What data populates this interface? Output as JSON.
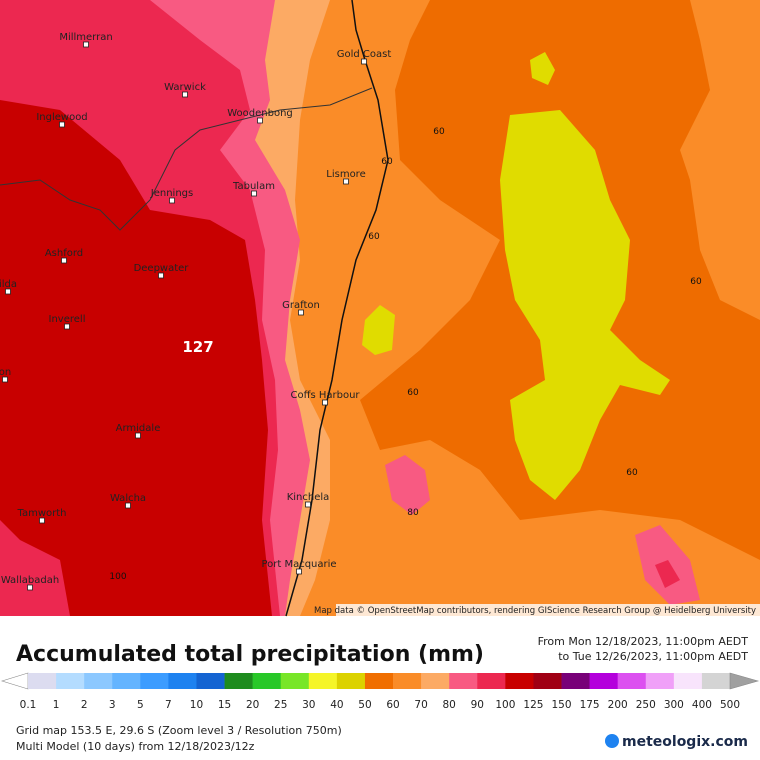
{
  "map": {
    "places": [
      "Millmerran",
      "Warwick",
      "Inglewood",
      "Woodenbong",
      "Jennings",
      "Tabulam",
      "Ashford",
      "Deepwater",
      "ilda",
      "Inverell",
      "on",
      "Armidale",
      "Walcha",
      "Tamworth",
      "Wallabadah",
      "Gold Coast",
      "Lismore",
      "Grafton",
      "Coffs Harbour",
      "Kinchela",
      "Port Macquarie"
    ],
    "contour_labels": [
      "60",
      "60",
      "60",
      "60",
      "60",
      "60",
      "80",
      "100"
    ],
    "max_label": "127",
    "attribution": "Map data © OpenStreetMap contributors, rendering GIScience Research Group @ Heidelberg University"
  },
  "header": {
    "title": "Accumulated total precipitation (mm)",
    "from": "From Mon 12/18/2023, 11:00pm AEDT",
    "to": "to Tue 12/26/2023, 11:00pm AEDT"
  },
  "legend": {
    "labels": [
      0.1,
      1,
      2,
      3,
      5,
      7,
      10,
      15,
      20,
      25,
      30,
      40,
      50,
      60,
      70,
      80,
      90,
      100,
      125,
      150,
      175,
      200,
      250,
      300,
      400,
      500
    ],
    "colors": [
      "#ffffff",
      "#dcdcf0",
      "#b4dcff",
      "#8cc8ff",
      "#64b4ff",
      "#3c9cff",
      "#1e82f0",
      "#1464d2",
      "#1e8c1e",
      "#28c828",
      "#78e628",
      "#f5f528",
      "#dcd200",
      "#f06e00",
      "#fa8c28",
      "#fcaa64",
      "#f85a82",
      "#ec2850",
      "#c80000",
      "#a00014",
      "#780078",
      "#b400dc",
      "#dc50f0",
      "#f0a0f8",
      "#f8e4fc",
      "#d4d4d4",
      "#a0a0a0"
    ]
  },
  "footer": {
    "grid": "Grid map 153.5 E, 29.6 S (Zoom level 3 / Resolution 750m)",
    "model": "Multi Model (10 days) from 12/18/2023/12z",
    "logo": "meteologix.com"
  }
}
